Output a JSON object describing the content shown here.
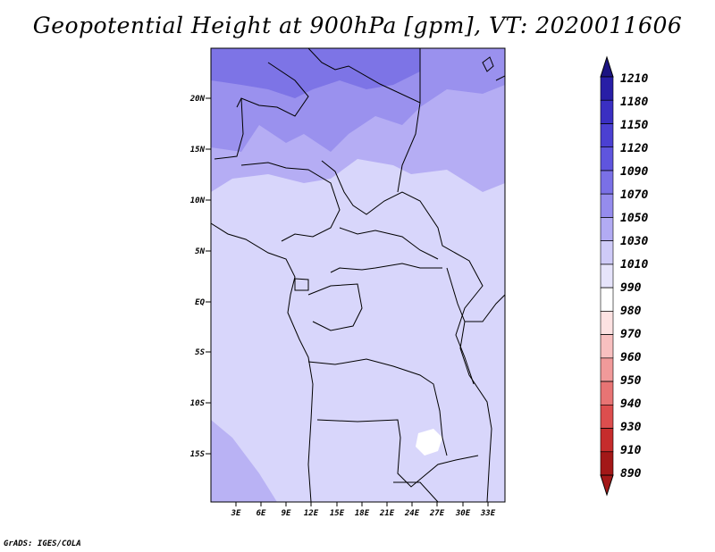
{
  "title": "Geopotential Height at 900hPa [gpm], VT: 2020011606",
  "credit": "GrADS: IGES/COLA",
  "map": {
    "lat_labels": [
      "20N",
      "15N",
      "10N",
      "5N",
      "EQ",
      "5S",
      "10S",
      "15S"
    ],
    "lon_labels": [
      "3E",
      "6E",
      "9E",
      "12E",
      "15E",
      "18E",
      "21E",
      "24E",
      "27E",
      "30E",
      "33E"
    ],
    "extent": {
      "lon_min": 0,
      "lon_max": 35,
      "lat_min": -20,
      "lat_max": 25
    },
    "ocean_color": "#a49cf2",
    "land_border_color": "#000000"
  },
  "colorbar": {
    "levels": [
      "1210",
      "1180",
      "1150",
      "1120",
      "1090",
      "1070",
      "1050",
      "1030",
      "1010",
      "990",
      "980",
      "970",
      "960",
      "950",
      "940",
      "930",
      "910",
      "890"
    ],
    "colors": [
      "#1c1482",
      "#281ea6",
      "#3a2fc2",
      "#4b40d2",
      "#5f55de",
      "#7a70e6",
      "#958ced",
      "#b2abf3",
      "#cfcbf8",
      "#e6e4fb",
      "#ffffff",
      "#fde2e2",
      "#f8c0c0",
      "#f19a9a",
      "#e87474",
      "#dd4e4e",
      "#c62c2c",
      "#a31818"
    ]
  }
}
